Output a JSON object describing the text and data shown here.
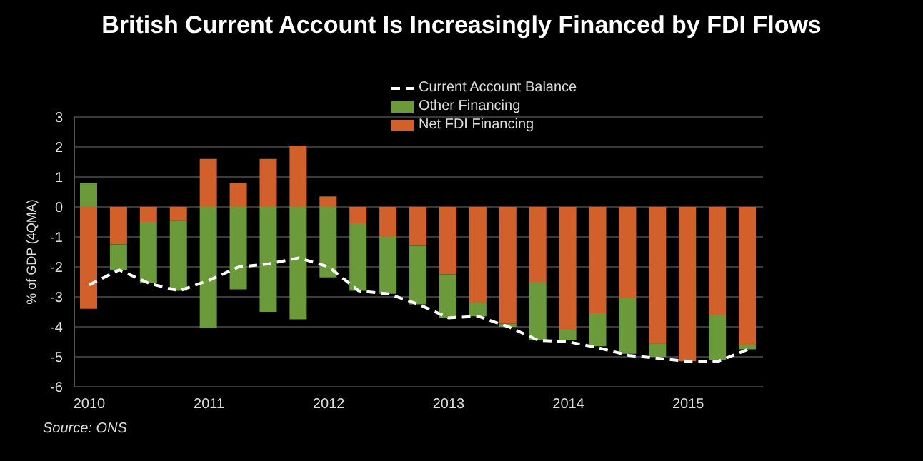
{
  "chart_data": {
    "type": "bar",
    "title": "British Current Account Is Increasingly Financed by FDI Flows",
    "ylabel": "% of GDP (4QMA)",
    "annotations": [
      "Source: ONS"
    ],
    "categories": [
      "2010",
      null,
      null,
      null,
      "2011",
      null,
      null,
      null,
      "2012",
      null,
      null,
      null,
      "2013",
      null,
      null,
      null,
      "2014",
      null,
      null,
      null,
      "2015",
      null,
      null
    ],
    "stacked": true,
    "ylim": [
      -6,
      3
    ],
    "yticks": [
      -6,
      -5,
      -4,
      -3,
      -2,
      -1,
      0,
      1,
      2,
      3
    ],
    "grid": "y",
    "legend": "top",
    "line_style": "dashed",
    "marker": "none",
    "series": [
      {
        "name": "Net FDI Financing",
        "color": "#d2602a",
        "values": [
          -3.4,
          -1.25,
          -0.5,
          -0.45,
          1.6,
          0.8,
          1.6,
          2.05,
          0.35,
          -0.55,
          -1.0,
          -1.3,
          -2.25,
          -3.2,
          -3.9,
          -2.5,
          -4.1,
          -3.55,
          -3.05,
          -4.55,
          -5.15,
          -3.6,
          -4.6
        ]
      },
      {
        "name": "Other Financing",
        "color": "#6a9a3a",
        "values": [
          0.8,
          -0.85,
          -2.05,
          -2.35,
          -4.05,
          -2.75,
          -3.5,
          -3.75,
          -2.35,
          -2.25,
          -1.9,
          -1.95,
          -1.45,
          -0.45,
          -0.1,
          -1.95,
          -0.35,
          -1.1,
          -1.85,
          -0.45,
          0,
          -1.5,
          -0.15
        ]
      },
      {
        "name": "Current Account Balance",
        "type": "line",
        "color": "#ffffff",
        "values": [
          -2.6,
          -2.1,
          -2.55,
          -2.8,
          -2.45,
          -2.0,
          -1.9,
          -1.7,
          -2.0,
          -2.8,
          -2.9,
          -3.25,
          -3.7,
          -3.65,
          -4.0,
          -4.45,
          -4.5,
          -4.7,
          -4.95,
          -5.05,
          -5.15,
          -5.15,
          -4.75
        ]
      }
    ]
  }
}
